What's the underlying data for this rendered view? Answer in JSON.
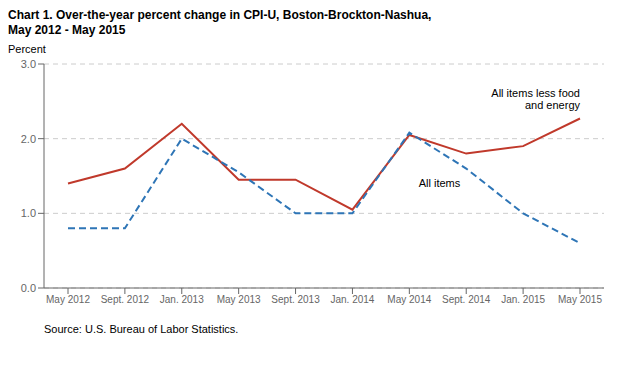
{
  "chart_data": {
    "type": "line",
    "title": "Chart 1.  Over-the-year percent change in CPI-U, Boston-Brockton-Nashua,",
    "subtitle": "May 2012 - May 2015",
    "y_label": "Percent",
    "source": "Source: U.S. Bureau of Labor Statistics.",
    "categories": [
      "May 2012",
      "Sept. 2012",
      "Jan. 2013",
      "May 2013",
      "Sept. 2013",
      "Jan. 2014",
      "May 2014",
      "Sept. 2014",
      "Jan. 2015",
      "May 2015"
    ],
    "series": [
      {
        "name": "All items less food\nand energy",
        "color": "#c0392b",
        "line_style": "solid",
        "values": [
          1.4,
          1.6,
          2.2,
          1.45,
          1.45,
          1.05,
          2.05,
          1.8,
          1.9,
          2.27
        ]
      },
      {
        "name": "All items",
        "color": "#2e75b6",
        "line_style": "dashed",
        "values": [
          0.8,
          0.8,
          2.0,
          1.55,
          1.0,
          1.0,
          2.08,
          1.6,
          1.0,
          0.6
        ]
      }
    ],
    "ylim": [
      0.0,
      3.0
    ],
    "yticks": [
      {
        "value": 0.0,
        "label": "0.0"
      },
      {
        "value": 1.0,
        "label": "1.0"
      },
      {
        "value": 2.0,
        "label": "2.0"
      },
      {
        "value": 3.0,
        "label": "3.0"
      }
    ],
    "grid": true
  }
}
